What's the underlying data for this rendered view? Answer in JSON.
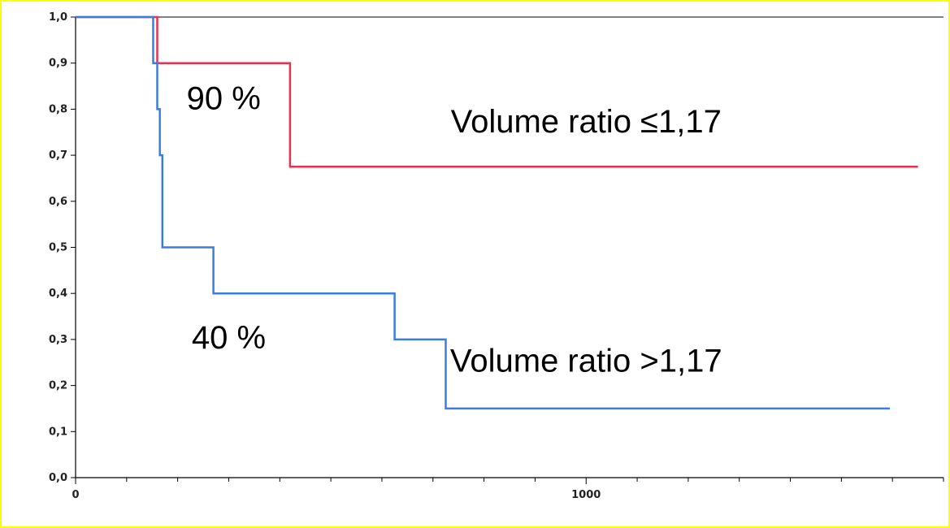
{
  "frame_color": "#ffff00",
  "chart_data": {
    "type": "line",
    "step": true,
    "title": "",
    "xlabel": "",
    "ylabel": "",
    "xlim": [
      0,
      1700
    ],
    "ylim": [
      0,
      1.0
    ],
    "grid": false,
    "y_ticks": [
      0,
      0.1,
      0.2,
      0.3,
      0.4,
      0.5,
      0.6,
      0.7,
      0.8,
      0.9,
      1.0
    ],
    "y_tick_labels": [
      "0,0",
      "0,1",
      "0,2",
      "0,3",
      "0,4",
      "0,5",
      "0,6",
      "0,7",
      "0,8",
      "0,9",
      "1,0"
    ],
    "x_ticks": [
      0,
      1000
    ],
    "x_tick_labels": [
      "0",
      "1000"
    ],
    "x_minor_step": 100,
    "series": [
      {
        "color": "#e8304f",
        "x": [
          0,
          160,
          160,
          420,
          420,
          1650
        ],
        "y": [
          1.0,
          1.0,
          0.9,
          0.9,
          0.675,
          0.675
        ]
      },
      {
        "color": "#3b7ddd",
        "x": [
          0,
          152,
          152,
          160,
          160,
          165,
          165,
          170,
          170,
          270,
          270,
          625,
          625,
          725,
          725,
          1595
        ],
        "y": [
          1.0,
          1.0,
          0.9,
          0.9,
          0.8,
          0.8,
          0.7,
          0.7,
          0.5,
          0.5,
          0.4,
          0.4,
          0.3,
          0.3,
          0.15,
          0.15
        ]
      }
    ],
    "annotations": [
      {
        "text": "90 %",
        "x": 290,
        "y": 0.8,
        "anchor": "middle"
      },
      {
        "text": "Volume  ratio ≤1,17",
        "x": 1000,
        "y": 0.75,
        "anchor": "middle"
      },
      {
        "text": "40 %",
        "x": 300,
        "y": 0.28,
        "anchor": "middle"
      },
      {
        "text": "Volume ratio >1,17",
        "x": 1000,
        "y": 0.23,
        "anchor": "middle"
      }
    ]
  }
}
